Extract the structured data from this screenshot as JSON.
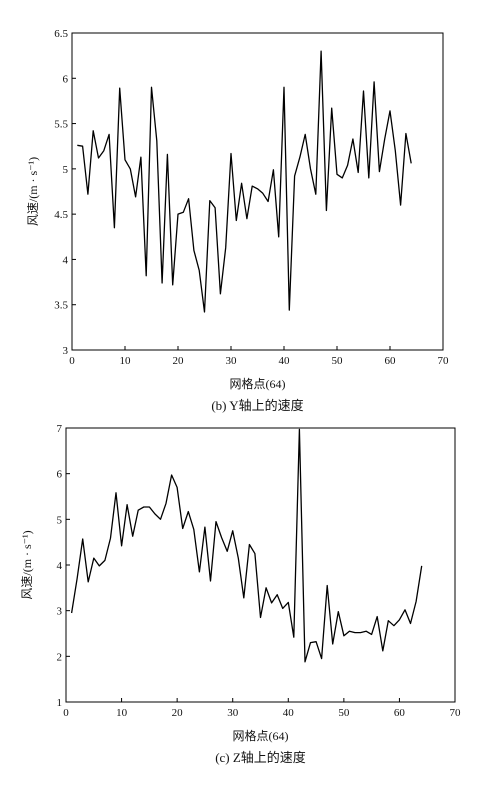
{
  "chart_data": [
    {
      "type": "line",
      "caption": "(b) Y轴上的速度",
      "xlabel": "网格点(64)",
      "ylabel": "风速/(m · s⁻¹)",
      "xlim": [
        0,
        70
      ],
      "ylim": [
        3,
        6.5
      ],
      "xticks": [
        "0",
        "10",
        "20",
        "30",
        "40",
        "50",
        "60",
        "70"
      ],
      "yticks": [
        "3",
        "3.5",
        "4",
        "4.5",
        "5",
        "5.5",
        "6",
        "6.5"
      ],
      "series": [
        {
          "x": [
            1,
            2,
            3,
            4,
            5,
            6,
            7,
            8,
            9,
            10,
            11,
            12,
            13,
            14,
            15,
            16,
            17,
            18,
            19,
            20,
            21,
            22,
            23,
            24,
            25,
            26,
            27,
            28,
            29,
            30,
            31,
            32,
            33,
            34,
            35,
            36,
            37,
            38,
            39,
            40,
            41,
            42,
            43,
            44,
            45,
            46,
            47,
            48,
            49,
            50,
            51,
            52,
            53,
            54,
            55,
            56,
            57,
            58,
            59,
            60,
            61,
            62,
            63,
            64
          ],
          "values": [
            5.26,
            5.25,
            4.72,
            5.42,
            5.12,
            5.2,
            5.38,
            4.35,
            5.89,
            5.1,
            5.0,
            4.69,
            5.13,
            3.82,
            5.9,
            5.31,
            3.74,
            5.16,
            3.72,
            4.5,
            4.52,
            4.67,
            4.1,
            3.88,
            3.42,
            4.65,
            4.57,
            3.62,
            4.13,
            5.17,
            4.43,
            4.84,
            4.45,
            4.81,
            4.78,
            4.73,
            4.64,
            4.99,
            4.25,
            5.9,
            3.44,
            4.92,
            5.13,
            5.38,
            5.0,
            4.72,
            6.3,
            4.54,
            5.67,
            4.94,
            4.9,
            5.04,
            5.33,
            4.96,
            5.86,
            4.9,
            5.96,
            4.97,
            5.33,
            5.64,
            5.2,
            4.6,
            5.39,
            5.06
          ]
        }
      ]
    },
    {
      "type": "line",
      "caption": "(c) Z轴上的速度",
      "xlabel": "网格点(64)",
      "ylabel": "风速/(m · s⁻¹)",
      "xlim": [
        0,
        70
      ],
      "ylim": [
        1,
        7
      ],
      "xticks": [
        "0",
        "10",
        "20",
        "30",
        "40",
        "50",
        "60",
        "70"
      ],
      "yticks": [
        "1",
        "2",
        "3",
        "4",
        "5",
        "6",
        "7"
      ],
      "series": [
        {
          "x": [
            1,
            2,
            3,
            4,
            5,
            6,
            7,
            8,
            9,
            10,
            11,
            12,
            13,
            14,
            15,
            16,
            17,
            18,
            19,
            20,
            21,
            22,
            23,
            24,
            25,
            26,
            27,
            28,
            29,
            30,
            31,
            32,
            33,
            34,
            35,
            36,
            37,
            38,
            39,
            40,
            41,
            42,
            43,
            44,
            45,
            46,
            47,
            48,
            49,
            50,
            51,
            52,
            53,
            54,
            55,
            56,
            57,
            58,
            59,
            60,
            61,
            62,
            63,
            64
          ],
          "values": [
            2.95,
            3.7,
            4.57,
            3.63,
            4.15,
            3.98,
            4.1,
            4.59,
            5.58,
            4.42,
            5.32,
            4.63,
            5.2,
            5.27,
            5.27,
            5.12,
            5.0,
            5.35,
            5.97,
            5.7,
            4.8,
            5.17,
            4.78,
            3.85,
            4.83,
            3.65,
            4.95,
            4.6,
            4.3,
            4.75,
            4.15,
            3.28,
            4.45,
            4.25,
            2.85,
            3.5,
            3.17,
            3.35,
            3.05,
            3.18,
            2.42,
            6.97,
            1.88,
            2.3,
            2.32,
            1.95,
            3.55,
            2.27,
            2.98,
            2.45,
            2.55,
            2.52,
            2.52,
            2.55,
            2.48,
            2.87,
            2.12,
            2.78,
            2.67,
            2.8,
            3.02,
            2.72,
            3.2,
            3.98
          ]
        }
      ]
    }
  ]
}
